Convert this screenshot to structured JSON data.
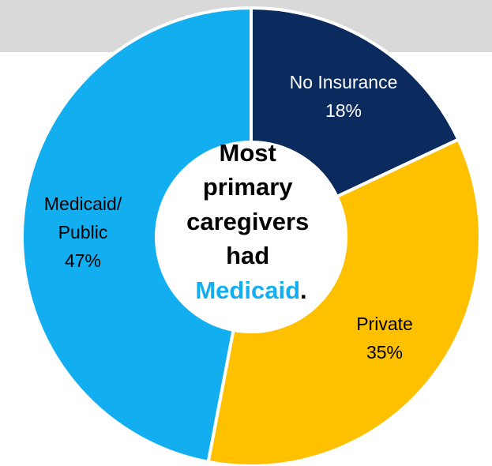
{
  "colors": {
    "no_insurance": "#0b2a5e",
    "private": "#ffc000",
    "medicaid": "#13aef0",
    "center_text": "#000000",
    "highlight": "#13aef0",
    "band": "#d9d9d9"
  },
  "center": {
    "lines": [
      "Most",
      "primary",
      "caregivers",
      "had"
    ],
    "highlight_word": "Medicaid",
    "period": "."
  },
  "chart_data": {
    "type": "pie",
    "donut": true,
    "slices": [
      {
        "label_lines": [
          "No Insurance",
          "18%"
        ],
        "value": 18,
        "color": "#0b2a5e",
        "text_color": "#ffffff"
      },
      {
        "label_lines": [
          "Private",
          "35%"
        ],
        "value": 35,
        "color": "#ffc000",
        "text_color": "#000000"
      },
      {
        "label_lines": [
          "Medicaid/",
          "Public",
          "47%"
        ],
        "value": 47,
        "color": "#13aef0",
        "text_color": "#000000"
      }
    ]
  }
}
